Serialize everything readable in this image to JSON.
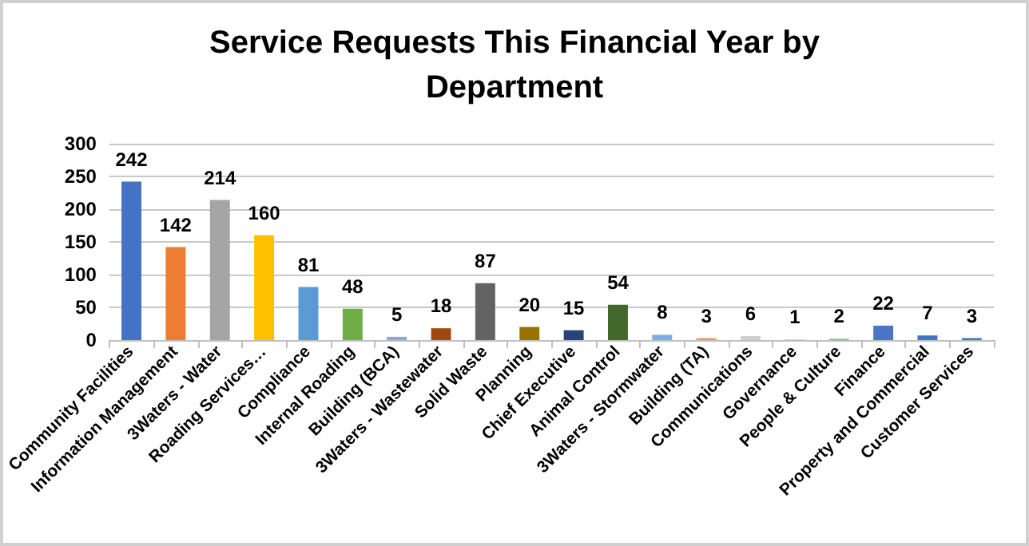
{
  "chart_data": {
    "type": "bar",
    "title": "Service Requests This Financial Year by\nDepartment",
    "categories": [
      "Community Facilities",
      "Information Management",
      "3Waters - Water",
      "Roading Services…",
      "Compliance",
      "Internal Roading",
      "Building (BCA)",
      "3Waters - Wastewater",
      "Solid Waste",
      "Planning",
      "Chief Executive",
      "Animal Control",
      "3Waters - Stormwater",
      "Building (TA)",
      "Communications",
      "Governance",
      "People & Culture",
      "Finance",
      "Property and Commercial",
      "Customer Services"
    ],
    "values": [
      242,
      142,
      214,
      160,
      81,
      48,
      5,
      18,
      87,
      20,
      15,
      54,
      8,
      3,
      6,
      1,
      2,
      22,
      7,
      3
    ],
    "colors": [
      "#4472c4",
      "#ed7d31",
      "#a5a5a5",
      "#ffc000",
      "#5b9bd5",
      "#70ad47",
      "#8fa6d6",
      "#9e480e",
      "#636363",
      "#997300",
      "#264478",
      "#43682b",
      "#7cafdd",
      "#f1975a",
      "#d0d0d0",
      "#ffcd33",
      "#8cc168",
      "#4a76c6",
      "#4472c4",
      "#4472c4"
    ],
    "ylim": [
      0,
      300
    ],
    "yticks": [
      0,
      50,
      100,
      150,
      200,
      250,
      300
    ],
    "grid": "y",
    "data_labels": true
  }
}
